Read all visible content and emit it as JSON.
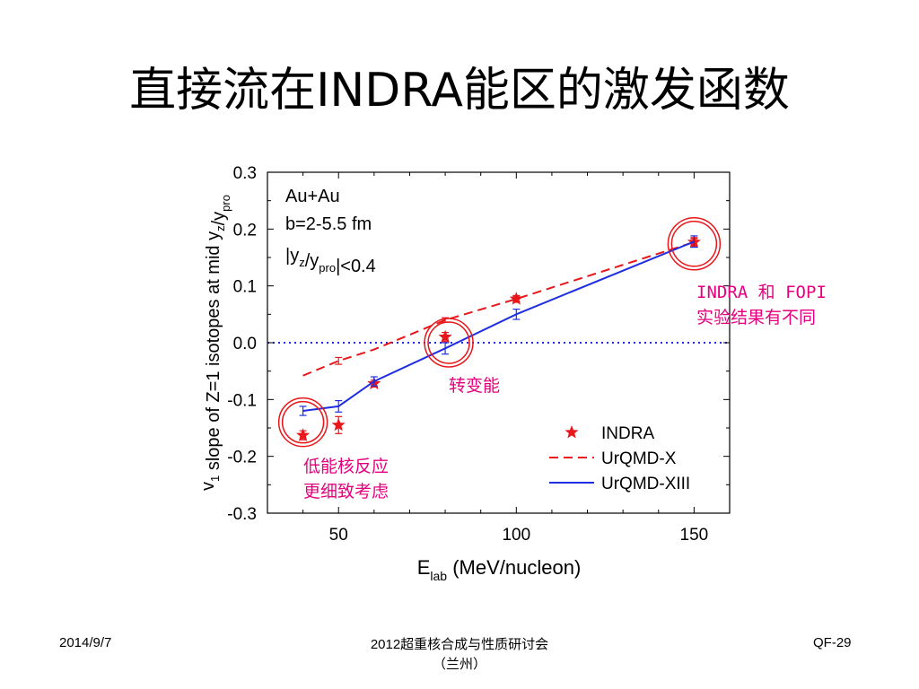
{
  "slide": {
    "title": "直接流在INDRA能区的激发函数",
    "footer_left": "2014/9/7",
    "footer_center_line1": "2012超重核合成与性质研讨会",
    "footer_center_line2": "（兰州）",
    "footer_right": "QF-29"
  },
  "annotations": {
    "right_line1": "INDRA 和 FOPI",
    "right_line2": "实验结果有不同",
    "middle": "转变能",
    "left_line1": "低能核反应",
    "left_line2": "更细致考虑"
  },
  "colors": {
    "indra": "#e8171b",
    "urqmd_x": "#e8171b",
    "urqmd_xiii": "#1f2ee0",
    "annotation": "#e6007e",
    "zero_line": "#1f2ee0"
  },
  "chart_data": {
    "type": "scatter",
    "title": "",
    "xlabel": "E",
    "xlabel_sub": "lab",
    "xlabel_unit": "(MeV/nucleon)",
    "ylabel_main": "v",
    "ylabel_sub1": "1",
    "ylabel_mid": " slope of Z=1 isotopes at mid y",
    "ylabel_sub2": "z",
    "ylabel_slash": "/y",
    "ylabel_sub3": "pro",
    "xlim": [
      30,
      160
    ],
    "ylim": [
      -0.3,
      0.3
    ],
    "xticks": [
      50,
      100,
      150
    ],
    "yticks": [
      -0.3,
      -0.2,
      -0.1,
      0.0,
      0.1,
      0.2,
      0.3
    ],
    "ytick_labels": [
      "-0.3",
      "-0.2",
      "-0.1",
      "0.0",
      "0.1",
      "0.2",
      "0.3"
    ],
    "xtick_labels": [
      "50",
      "100",
      "150"
    ],
    "plot_text_line1": "Au+Au",
    "plot_text_line2": "b=2-5.5 fm",
    "plot_text_line3_a": "|y",
    "plot_text_line3_sub1": "z",
    "plot_text_line3_b": "/y",
    "plot_text_line3_sub2": "pro",
    "plot_text_line3_c": "|<0.4",
    "legend_position": "bottom-right",
    "series": [
      {
        "name": "INDRA",
        "style": "star",
        "x": [
          40,
          50,
          60,
          80,
          100,
          150
        ],
        "y": [
          -0.163,
          -0.145,
          -0.072,
          0.01,
          0.077,
          0.177
        ],
        "err": [
          0.008,
          0.015,
          0.006,
          0.008,
          0.006,
          0.006
        ]
      },
      {
        "name": "UrQMD-X",
        "style": "dashed",
        "x": [
          40,
          50,
          60,
          80,
          100,
          150
        ],
        "y": [
          -0.058,
          -0.032,
          -0.012,
          0.04,
          0.077,
          0.177
        ],
        "err": [
          0.0,
          0.006,
          0.0,
          0.004,
          0.004,
          0.008
        ]
      },
      {
        "name": "UrQMD-XIII",
        "style": "solid",
        "x": [
          40,
          50,
          60,
          80,
          100,
          150
        ],
        "y": [
          -0.12,
          -0.112,
          -0.068,
          -0.01,
          0.05,
          0.178
        ],
        "err": [
          0.008,
          0.01,
          0.008,
          0.01,
          0.009,
          0.01
        ]
      }
    ],
    "zero_line": 0.0
  }
}
